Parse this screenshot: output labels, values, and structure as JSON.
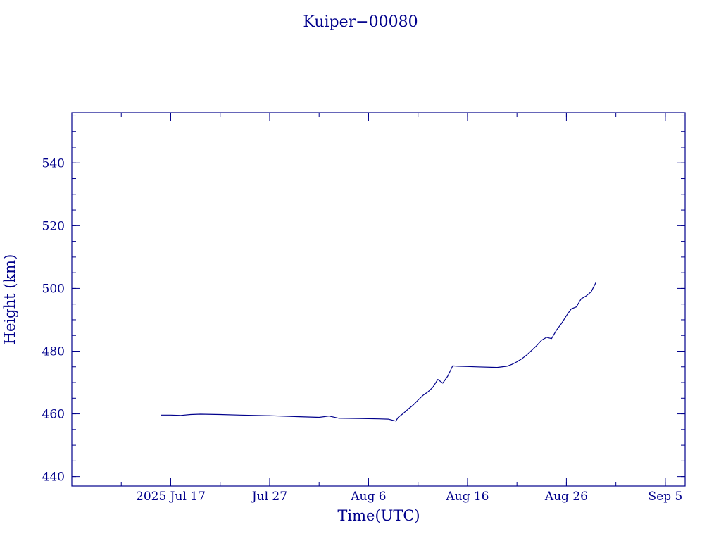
{
  "chart_data": {
    "type": "line",
    "title": "Kuiper−00080",
    "xlabel": "Time(UTC)",
    "ylabel": "Height (km)",
    "line_color": "#00008b",
    "grid": false,
    "xlim": [
      "2025-07-07",
      "2025-09-07"
    ],
    "ylim": [
      437,
      556
    ],
    "x_ticks": [
      {
        "date": "2025-07-17",
        "label": "2025 Jul 17"
      },
      {
        "date": "2025-07-27",
        "label": "Jul 27"
      },
      {
        "date": "2025-08-06",
        "label": "Aug  6"
      },
      {
        "date": "2025-08-16",
        "label": "Aug 16"
      },
      {
        "date": "2025-08-26",
        "label": "Aug 26"
      },
      {
        "date": "2025-09-05",
        "label": "Sep  5"
      }
    ],
    "x_minor_step_days": 5,
    "y_ticks": [
      {
        "value": 440,
        "label": "440"
      },
      {
        "value": 460,
        "label": "460"
      },
      {
        "value": 480,
        "label": "480"
      },
      {
        "value": 500,
        "label": "500"
      },
      {
        "value": 520,
        "label": "520"
      },
      {
        "value": 540,
        "label": "540"
      }
    ],
    "y_minor_step": 5,
    "series": [
      {
        "x": [
          "2025-07-16",
          "2025-07-17",
          "2025-07-18",
          "2025-07-19",
          "2025-07-20",
          "2025-07-22",
          "2025-07-24",
          "2025-07-27",
          "2025-07-30",
          "2025-08-01",
          "2025-08-02",
          "2025-08-03",
          "2025-08-05",
          "2025-08-07",
          "2025-08-08",
          "2025-08-08T18:00",
          "2025-08-09",
          "2025-08-09T12:00",
          "2025-08-10",
          "2025-08-10T12:00",
          "2025-08-11",
          "2025-08-11T12:00",
          "2025-08-12",
          "2025-08-12T12:00",
          "2025-08-13",
          "2025-08-13T12:00",
          "2025-08-14",
          "2025-08-14T12:00",
          "2025-08-15",
          "2025-08-16",
          "2025-08-17",
          "2025-08-19",
          "2025-08-20",
          "2025-08-20T12:00",
          "2025-08-21",
          "2025-08-21T12:00",
          "2025-08-22",
          "2025-08-22T12:00",
          "2025-08-23",
          "2025-08-23T12:00",
          "2025-08-24",
          "2025-08-24T12:00",
          "2025-08-25",
          "2025-08-25T12:00",
          "2025-08-26",
          "2025-08-26T12:00",
          "2025-08-27",
          "2025-08-27T12:00",
          "2025-08-28",
          "2025-08-28T12:00",
          "2025-08-29"
        ],
        "y": [
          459.6,
          459.6,
          459.5,
          459.8,
          459.9,
          459.8,
          459.6,
          459.4,
          459.1,
          458.9,
          459.3,
          458.6,
          458.5,
          458.4,
          458.3,
          457.7,
          458.9,
          460.1,
          461.5,
          462.8,
          464.4,
          465.9,
          467.0,
          468.5,
          471.0,
          469.8,
          472.0,
          475.3,
          475.2,
          475.1,
          475.0,
          474.8,
          475.2,
          475.8,
          476.6,
          477.6,
          478.8,
          480.3,
          481.8,
          483.5,
          484.4,
          484.0,
          486.7,
          488.8,
          491.3,
          493.5,
          494.1,
          496.7,
          497.6,
          498.9,
          502.0
        ]
      }
    ]
  }
}
